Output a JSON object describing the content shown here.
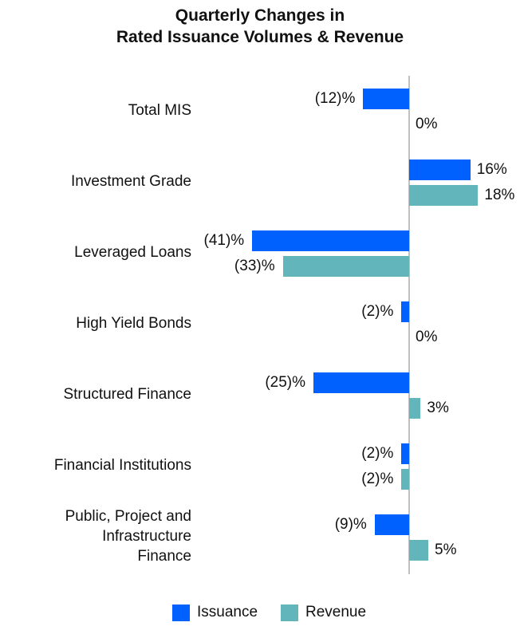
{
  "title_line1": "Quarterly Changes in",
  "title_line2": "Rated Issuance Volumes & Revenue",
  "colors": {
    "issuance": "#0061FF",
    "revenue": "#62B5BA",
    "axis": "#C0C0C0"
  },
  "legend": [
    {
      "label": "Issuance",
      "color": "#0061FF"
    },
    {
      "label": "Revenue",
      "color": "#62B5BA"
    }
  ],
  "categories": [
    {
      "label": "Total MIS",
      "issuance_label": "(12)%",
      "revenue_label": "0%"
    },
    {
      "label": "Investment Grade",
      "issuance_label": "16%",
      "revenue_label": "18%"
    },
    {
      "label": "Leveraged Loans",
      "issuance_label": "(41)%",
      "revenue_label": "(33)%"
    },
    {
      "label": "High Yield Bonds",
      "issuance_label": "(2)%",
      "revenue_label": "0%"
    },
    {
      "label": "Structured Finance",
      "issuance_label": "(25)%",
      "revenue_label": "3%"
    },
    {
      "label": "Financial Institutions",
      "issuance_label": "(2)%",
      "revenue_label": "(2)%"
    },
    {
      "label": "Public, Project and Infrastructure Finance",
      "label_lines": [
        "Public, Project and",
        "Infrastructure",
        "Finance"
      ],
      "issuance_label": "(9)%",
      "revenue_label": "5%"
    }
  ],
  "chart_data": {
    "type": "bar",
    "orientation": "horizontal",
    "title": "Quarterly Changes in Rated Issuance Volumes & Revenue",
    "categories": [
      "Total MIS",
      "Investment Grade",
      "Leveraged Loans",
      "High Yield Bonds",
      "Structured Finance",
      "Financial Institutions",
      "Public, Project and Infrastructure Finance"
    ],
    "series": [
      {
        "name": "Issuance",
        "color": "#0061FF",
        "values": [
          -12,
          16,
          -41,
          -2,
          -25,
          -2,
          -9
        ]
      },
      {
        "name": "Revenue",
        "color": "#62B5BA",
        "values": [
          0,
          18,
          -33,
          0,
          3,
          -2,
          5
        ]
      }
    ],
    "value_format": "percent, negatives in parentheses",
    "xlabel": "",
    "ylabel": "",
    "grid": false,
    "legend_position": "bottom"
  }
}
